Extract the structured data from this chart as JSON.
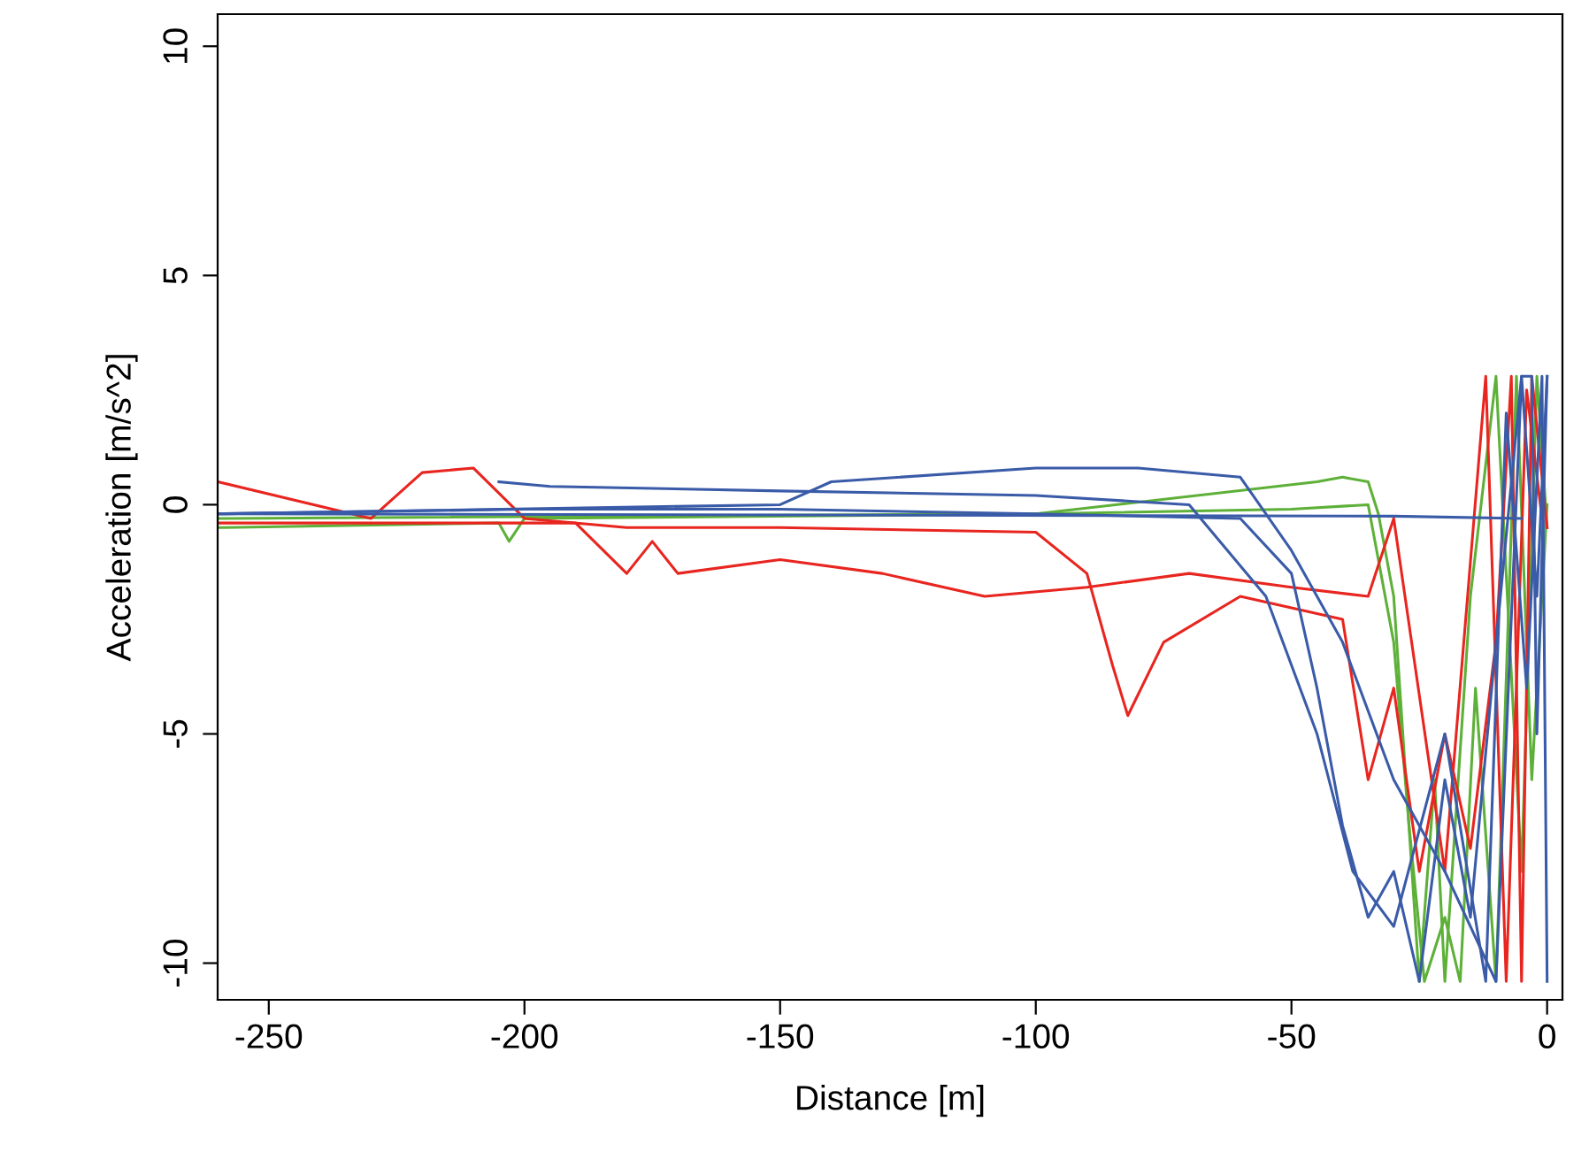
{
  "chart_data": {
    "type": "line",
    "xlabel": "Distance [m]",
    "ylabel": "Acceleration [m/s^2]",
    "xlim": [
      -260,
      3
    ],
    "ylim": [
      -10.8,
      10.7
    ],
    "xticks": [
      -250,
      -200,
      -150,
      -100,
      -50,
      0
    ],
    "yticks": [
      -10,
      -5,
      0,
      5,
      10
    ],
    "grid": false,
    "legend": false,
    "marker": "none",
    "line_style": "solid",
    "series": [
      {
        "color": "#5db038",
        "x": [
          -260,
          -205,
          -203,
          -200,
          -100,
          -45,
          -40,
          -35,
          -33,
          -30,
          -25,
          -22,
          -20,
          -15,
          -10,
          -5,
          -2,
          0
        ],
        "values": [
          -0.5,
          -0.4,
          -0.8,
          -0.3,
          -0.2,
          0.5,
          0.6,
          0.5,
          -0.2,
          -2,
          -10.4,
          -6,
          -10.4,
          -2,
          2.8,
          -8,
          2.8,
          -0.5
        ]
      },
      {
        "color": "#5db038",
        "x": [
          -260,
          -100,
          -50,
          -35,
          -30,
          -27,
          -24,
          -20,
          -17,
          -14,
          -10,
          -6,
          -3,
          0
        ],
        "values": [
          -0.3,
          -0.2,
          -0.1,
          0,
          -3,
          -7,
          -10.4,
          -9,
          -10.4,
          -4,
          -10.4,
          2.8,
          -6,
          0
        ]
      },
      {
        "color": "#e8251f",
        "x": [
          -260,
          -230,
          -220,
          -210,
          -200,
          -180,
          -150,
          -100,
          -90,
          -85,
          -82,
          -75,
          -60,
          -40,
          -35,
          -30,
          -25,
          -20,
          -15,
          -10,
          -7,
          -5,
          -3,
          0
        ],
        "values": [
          0.5,
          -0.3,
          0.7,
          0.8,
          -0.3,
          -0.5,
          -0.5,
          -0.6,
          -1.5,
          -3.5,
          -4.6,
          -3,
          -2,
          -2.5,
          -6,
          -4,
          -8,
          -5,
          -7.5,
          -3,
          2.8,
          -10.4,
          2.8,
          -0.5
        ]
      },
      {
        "color": "#e8251f",
        "x": [
          -260,
          -190,
          -180,
          -175,
          -170,
          -150,
          -130,
          -110,
          -90,
          -70,
          -50,
          -35,
          -30,
          -20,
          -12,
          -8,
          -4,
          -1
        ],
        "values": [
          -0.4,
          -0.4,
          -1.5,
          -0.8,
          -1.5,
          -1.2,
          -1.5,
          -2,
          -1.8,
          -1.5,
          -1.8,
          -2,
          -0.3,
          -8,
          2.8,
          -10.4,
          2.5,
          -0.3
        ]
      },
      {
        "color": "#3a5ba8",
        "x": [
          -260,
          -200,
          -150,
          -100,
          -60,
          -50,
          -45,
          -40,
          -35,
          -30,
          -25,
          -20,
          -15,
          -10,
          -5,
          -3,
          -2,
          0
        ],
        "values": [
          -0.2,
          -0.1,
          -0.1,
          -0.2,
          -0.3,
          -1.5,
          -4,
          -7,
          -9,
          -8,
          -10.4,
          -6,
          -9,
          -3,
          2.8,
          2.8,
          -5,
          2.8
        ]
      },
      {
        "color": "#3a5ba8",
        "x": [
          -260,
          -150,
          -140,
          -100,
          -80,
          -60,
          -50,
          -40,
          -30,
          -20,
          -10,
          -5,
          -2,
          0
        ],
        "values": [
          -0.2,
          0,
          0.5,
          0.8,
          0.8,
          0.6,
          -1,
          -3,
          -6,
          -8,
          -10.4,
          2.8,
          -2,
          2.8
        ]
      },
      {
        "color": "#3a5ba8",
        "x": [
          -205,
          -195,
          -150,
          -100,
          -70,
          -55,
          -45,
          -38,
          -30,
          -20,
          -12,
          -8,
          -4,
          -1,
          0
        ],
        "values": [
          0.5,
          0.4,
          0.3,
          0.2,
          0.0,
          -2,
          -5,
          -8,
          -9.2,
          -5,
          -10.4,
          2,
          -4,
          2.8,
          -10.4
        ]
      },
      {
        "color": "#3a5ba8",
        "x": [
          -260,
          -30,
          -5
        ],
        "values": [
          -0.2,
          -0.25,
          -0.3
        ]
      }
    ]
  }
}
